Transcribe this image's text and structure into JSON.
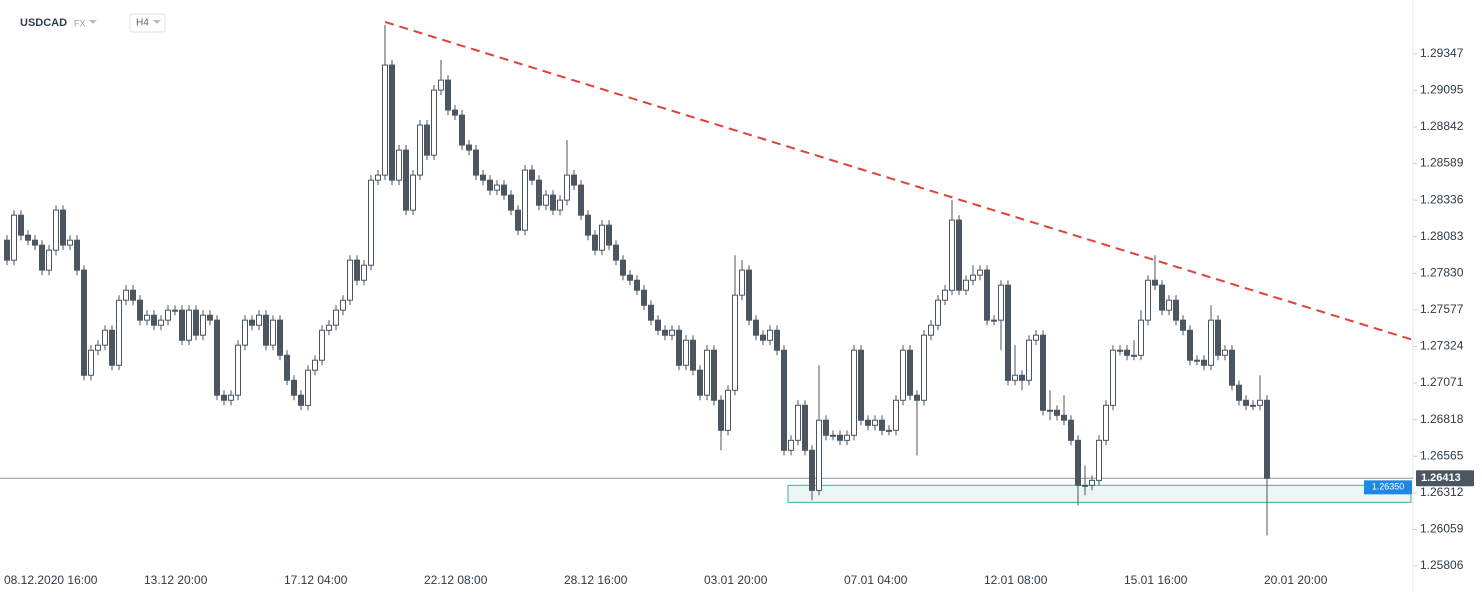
{
  "chart_data": {
    "type": "candlestick",
    "title": "USDCAD",
    "subtitle": "FX",
    "timeframe": "H4",
    "categories": [
      "08.12.2020 16:00",
      null,
      null,
      null,
      null,
      null,
      null,
      null,
      null,
      null,
      null,
      null,
      null,
      null,
      null,
      null,
      null,
      null,
      null,
      null,
      "13.12 20:00",
      null,
      null,
      null,
      null,
      null,
      null,
      null,
      null,
      null,
      null,
      null,
      null,
      null,
      null,
      null,
      null,
      null,
      null,
      null,
      "17.12 04:00",
      null,
      null,
      null,
      null,
      null,
      null,
      null,
      null,
      null,
      null,
      null,
      null,
      null,
      null,
      null,
      null,
      null,
      null,
      null,
      "22.12 08:00",
      null,
      null,
      null,
      null,
      null,
      null,
      null,
      null,
      null,
      null,
      null,
      null,
      null,
      null,
      null,
      null,
      null,
      null,
      null,
      "28.12 16:00",
      null,
      null,
      null,
      null,
      null,
      null,
      null,
      null,
      null,
      null,
      null,
      null,
      null,
      null,
      null,
      null,
      null,
      null,
      null,
      "03.01 20:00",
      null,
      null,
      null,
      null,
      null,
      null,
      null,
      null,
      null,
      null,
      null,
      null,
      null,
      null,
      null,
      null,
      null,
      null,
      null,
      "07.01 04:00",
      null,
      null,
      null,
      null,
      null,
      null,
      null,
      null,
      null,
      null,
      null,
      null,
      null,
      null,
      null,
      null,
      null,
      null,
      null,
      "12.01 08:00",
      null,
      null,
      null,
      null,
      null,
      null,
      null,
      null,
      null,
      null,
      null,
      null,
      null,
      null,
      null,
      null,
      null,
      null,
      null,
      "15.01 16:00",
      null,
      null,
      null,
      null,
      null,
      null,
      null,
      null,
      null,
      null,
      null,
      null,
      null,
      null,
      null,
      null,
      null,
      null,
      null,
      "20.01 20:00"
    ],
    "open": [
      1.28059,
      1.27921,
      1.28232,
      1.28094,
      1.28059,
      1.28025,
      1.27852,
      1.2799,
      1.28267,
      1.28025,
      1.28059,
      1.27852,
      1.27125,
      1.27298,
      1.27333,
      1.27436,
      1.27194,
      1.27644,
      1.27713,
      1.27644,
      1.27506,
      1.2754,
      1.27471,
      1.27506,
      1.27575,
      1.27575,
      1.27367,
      1.27575,
      1.27402,
      1.2754,
      1.27506,
      1.26987,
      1.26952,
      1.26987,
      1.27333,
      1.27506,
      1.27471,
      1.2754,
      1.27333,
      1.27506,
      1.27263,
      1.2709,
      1.26987,
      1.26917,
      1.2716,
      1.27229,
      1.27436,
      1.27471,
      1.27575,
      1.27644,
      1.27921,
      1.27782,
      1.27886,
      1.28474,
      1.28509,
      1.2927,
      1.28474,
      1.28682,
      1.28267,
      1.28509,
      1.28855,
      1.28647,
      1.29097,
      1.29166,
      1.28959,
      1.28924,
      1.28717,
      1.28682,
      1.28509,
      1.28474,
      1.28405,
      1.2844,
      1.28371,
      1.28267,
      1.28128,
      1.28544,
      1.28474,
      1.28301,
      1.28371,
      1.28267,
      1.28336,
      1.28509,
      1.2844,
      1.28232,
      1.28094,
      1.2799,
      1.28163,
      1.28025,
      1.27921,
      1.27817,
      1.27782,
      1.27713,
      1.27609,
      1.27506,
      1.27436,
      1.27402,
      1.27436,
      1.27194,
      1.27367,
      1.2716,
      1.26987,
      1.27298,
      1.26952,
      1.26744,
      1.27021,
      1.27679,
      1.27852,
      1.27506,
      1.27402,
      1.27367,
      1.27436,
      1.27298,
      1.26606,
      1.26675,
      1.26917,
      1.26606,
      1.26329,
      1.26814,
      1.2671,
      1.2671,
      1.26675,
      1.2671,
      1.27298,
      1.26814,
      1.26779,
      1.26814,
      1.26744,
      1.26744,
      1.26952,
      1.27298,
      1.26987,
      1.26952,
      1.27402,
      1.27471,
      1.27644,
      1.27713,
      1.28198,
      1.27713,
      1.27782,
      1.27817,
      1.27852,
      1.27506,
      1.27506,
      1.27748,
      1.2709,
      1.27125,
      1.2709,
      1.27367,
      1.27402,
      1.26883,
      1.26883,
      1.26848,
      1.26814,
      1.26675,
      1.26364,
      1.26364,
      1.26398,
      1.26675,
      1.26917,
      1.27298,
      1.27298,
      1.27263,
      1.27263,
      1.27506,
      1.27782,
      1.27748,
      1.27575,
      1.27644,
      1.27506,
      1.27436,
      1.27229,
      1.27229,
      1.27194,
      1.27506,
      1.27263,
      1.27298,
      1.27056,
      1.26952,
      1.26917,
      1.26917,
      1.26952
    ],
    "high": [
      1.28094,
      1.28267,
      1.28267,
      1.28128,
      1.28094,
      1.28059,
      1.28025,
      1.28301,
      1.28301,
      1.28094,
      1.28094,
      1.27886,
      1.27333,
      1.27367,
      1.27471,
      1.27471,
      1.27679,
      1.27748,
      1.27748,
      1.27679,
      1.27575,
      1.27575,
      1.2754,
      1.27609,
      1.27609,
      1.27609,
      1.27609,
      1.27609,
      1.27575,
      1.27575,
      1.2754,
      1.27021,
      1.27021,
      1.27367,
      1.2754,
      1.2754,
      1.27575,
      1.27575,
      1.2754,
      1.2754,
      1.27298,
      1.27125,
      1.27021,
      1.27194,
      1.27263,
      1.27471,
      1.27506,
      1.27609,
      1.27679,
      1.27955,
      1.27955,
      1.27921,
      1.28509,
      1.28544,
      1.29547,
      1.29305,
      1.28717,
      1.28717,
      1.28544,
      1.2889,
      1.2889,
      1.29132,
      1.29305,
      1.29201,
      1.28993,
      1.28959,
      1.28751,
      1.28717,
      1.28544,
      1.28509,
      1.28474,
      1.28474,
      1.28405,
      1.28301,
      1.28578,
      1.28578,
      1.28509,
      1.28405,
      1.28405,
      1.28371,
      1.28751,
      1.28544,
      1.28474,
      1.28267,
      1.28128,
      1.28198,
      1.28198,
      1.28059,
      1.27955,
      1.27852,
      1.27817,
      1.27748,
      1.27644,
      1.2754,
      1.27471,
      1.27471,
      1.27471,
      1.27402,
      1.27402,
      1.27194,
      1.27333,
      1.27333,
      1.26987,
      1.27056,
      1.27955,
      1.27921,
      1.27886,
      1.2754,
      1.27436,
      1.27471,
      1.27471,
      1.27333,
      1.2671,
      1.26952,
      1.26952,
      1.26641,
      1.27194,
      1.26848,
      1.26744,
      1.26744,
      1.26744,
      1.27333,
      1.27333,
      1.26848,
      1.26848,
      1.26848,
      1.26779,
      1.26987,
      1.27333,
      1.27333,
      1.27021,
      1.27436,
      1.27506,
      1.27679,
      1.27748,
      1.28336,
      1.28232,
      1.27817,
      1.27886,
      1.27886,
      1.27886,
      1.2754,
      1.27782,
      1.27782,
      1.27333,
      1.2716,
      1.27402,
      1.27436,
      1.27436,
      1.27021,
      1.26917,
      1.26987,
      1.26848,
      1.2671,
      1.26502,
      1.26433,
      1.2671,
      1.26952,
      1.27333,
      1.27333,
      1.27333,
      1.27367,
      1.27575,
      1.27817,
      1.27955,
      1.27782,
      1.27679,
      1.27679,
      1.2754,
      1.27471,
      1.27263,
      1.27263,
      1.27609,
      1.2754,
      1.27333,
      1.27333,
      1.2709,
      1.26987,
      1.26952,
      1.27125,
      1.26987
    ],
    "low": [
      1.27886,
      1.27886,
      1.28059,
      1.28025,
      1.2799,
      1.27817,
      1.27817,
      1.27955,
      1.2799,
      1.2799,
      1.27817,
      1.2709,
      1.2709,
      1.27263,
      1.27298,
      1.2716,
      1.2716,
      1.27609,
      1.27609,
      1.27471,
      1.27471,
      1.27436,
      1.27436,
      1.27471,
      1.2754,
      1.27333,
      1.27333,
      1.27367,
      1.27367,
      1.27471,
      1.26952,
      1.26917,
      1.26917,
      1.26952,
      1.27298,
      1.27436,
      1.27436,
      1.27298,
      1.27298,
      1.27229,
      1.27056,
      1.26952,
      1.26883,
      1.26883,
      1.27125,
      1.27194,
      1.27402,
      1.27436,
      1.2754,
      1.27609,
      1.27748,
      1.27748,
      1.27852,
      1.2844,
      1.28474,
      1.2844,
      1.2844,
      1.28232,
      1.28232,
      1.28474,
      1.28613,
      1.28613,
      1.29063,
      1.28924,
      1.2889,
      1.28682,
      1.28647,
      1.28474,
      1.2844,
      1.28371,
      1.28371,
      1.28336,
      1.28232,
      1.28094,
      1.28094,
      1.2844,
      1.28267,
      1.28267,
      1.28232,
      1.28232,
      1.28301,
      1.28405,
      1.28198,
      1.28059,
      1.27955,
      1.27955,
      1.2799,
      1.27886,
      1.27782,
      1.27748,
      1.27679,
      1.27575,
      1.27471,
      1.27402,
      1.27367,
      1.27367,
      1.2716,
      1.2716,
      1.27125,
      1.26952,
      1.26952,
      1.26917,
      1.26606,
      1.2671,
      1.26987,
      1.27644,
      1.27471,
      1.27367,
      1.27333,
      1.27333,
      1.27263,
      1.26571,
      1.26571,
      1.26641,
      1.26571,
      1.2626,
      1.26295,
      1.26675,
      1.26675,
      1.26641,
      1.26641,
      1.26675,
      1.26779,
      1.26744,
      1.26744,
      1.2671,
      1.2671,
      1.2671,
      1.26917,
      1.26952,
      1.26571,
      1.26917,
      1.27367,
      1.27436,
      1.27609,
      1.27679,
      1.27679,
      1.27679,
      1.27748,
      1.27782,
      1.27471,
      1.27471,
      1.27298,
      1.27056,
      1.27056,
      1.27021,
      1.27056,
      1.27333,
      1.26848,
      1.26814,
      1.26814,
      1.26779,
      1.26641,
      1.26225,
      1.26295,
      1.26329,
      1.26364,
      1.26641,
      1.26883,
      1.27263,
      1.27229,
      1.27229,
      1.27229,
      1.27471,
      1.27713,
      1.2754,
      1.2754,
      1.27471,
      1.27402,
      1.27194,
      1.27194,
      1.2716,
      1.2716,
      1.27229,
      1.27229,
      1.27021,
      1.26917,
      1.26883,
      1.26883,
      1.26883,
      1.26018
    ],
    "close": [
      1.27921,
      1.28232,
      1.28094,
      1.28059,
      1.28025,
      1.27852,
      1.2799,
      1.28267,
      1.28025,
      1.28059,
      1.27852,
      1.27125,
      1.27298,
      1.27333,
      1.27436,
      1.27194,
      1.27644,
      1.27713,
      1.27644,
      1.27506,
      1.2754,
      1.27471,
      1.27506,
      1.27575,
      1.27575,
      1.27367,
      1.27575,
      1.27402,
      1.2754,
      1.27506,
      1.26987,
      1.26952,
      1.26987,
      1.27333,
      1.27506,
      1.27471,
      1.2754,
      1.27333,
      1.27506,
      1.27263,
      1.2709,
      1.26987,
      1.26917,
      1.2716,
      1.27229,
      1.27436,
      1.27471,
      1.27575,
      1.27644,
      1.27921,
      1.27782,
      1.27886,
      1.28474,
      1.28509,
      1.2927,
      1.28474,
      1.28682,
      1.28267,
      1.28509,
      1.28855,
      1.28647,
      1.29097,
      1.29166,
      1.28959,
      1.28924,
      1.28717,
      1.28682,
      1.28509,
      1.28474,
      1.28405,
      1.2844,
      1.28371,
      1.28267,
      1.28128,
      1.28544,
      1.28474,
      1.28301,
      1.28371,
      1.28267,
      1.28336,
      1.28509,
      1.2844,
      1.28232,
      1.28094,
      1.2799,
      1.28163,
      1.28025,
      1.27921,
      1.27817,
      1.27782,
      1.27713,
      1.27609,
      1.27506,
      1.27436,
      1.27402,
      1.27436,
      1.27194,
      1.27367,
      1.2716,
      1.26987,
      1.27298,
      1.26952,
      1.26744,
      1.27021,
      1.27679,
      1.27852,
      1.27506,
      1.27402,
      1.27367,
      1.27436,
      1.27298,
      1.26606,
      1.26675,
      1.26917,
      1.26606,
      1.26329,
      1.26814,
      1.2671,
      1.2671,
      1.26675,
      1.2671,
      1.27298,
      1.26814,
      1.26779,
      1.26814,
      1.26744,
      1.26744,
      1.26952,
      1.27298,
      1.26987,
      1.26952,
      1.27402,
      1.27471,
      1.27644,
      1.27713,
      1.28198,
      1.27713,
      1.27782,
      1.27817,
      1.27852,
      1.27506,
      1.27506,
      1.27748,
      1.2709,
      1.27125,
      1.2709,
      1.27367,
      1.27402,
      1.26883,
      1.26883,
      1.26848,
      1.26814,
      1.26675,
      1.26364,
      1.26364,
      1.26398,
      1.26675,
      1.26917,
      1.27298,
      1.27298,
      1.27263,
      1.27263,
      1.27506,
      1.27782,
      1.27748,
      1.27575,
      1.27644,
      1.27506,
      1.27436,
      1.27229,
      1.27229,
      1.27194,
      1.27506,
      1.27263,
      1.27298,
      1.27056,
      1.26952,
      1.26917,
      1.26917,
      1.26952,
      1.26413
    ],
    "up_color": "#ffffff",
    "down_color": "#4b5661",
    "ylim": [
      1.25806,
      1.2972
    ],
    "yticks": [
      1.29347,
      1.29095,
      1.28842,
      1.28589,
      1.28336,
      1.28083,
      {
        "value": 1.2783,
        "label": "1.27830"
      },
      1.27577,
      1.27324,
      1.27071,
      1.26818,
      1.26565,
      1.26312,
      1.26059,
      1.25806
    ],
    "grid": false,
    "last_price": 1.26413,
    "last_price_color": "#4b5661",
    "trendline": {
      "x": [
        54,
        201
      ],
      "y": [
        1.29568,
        1.27367
      ],
      "color": "#e0413a"
    },
    "zone": {
      "x": [
        112,
        201
      ],
      "ylim": [
        1.26246,
        1.26364
      ],
      "color": "#3cb39a",
      "label": {
        "value": 1.2635,
        "label": "1.26350"
      },
      "label_color": "#1e88e5"
    }
  }
}
